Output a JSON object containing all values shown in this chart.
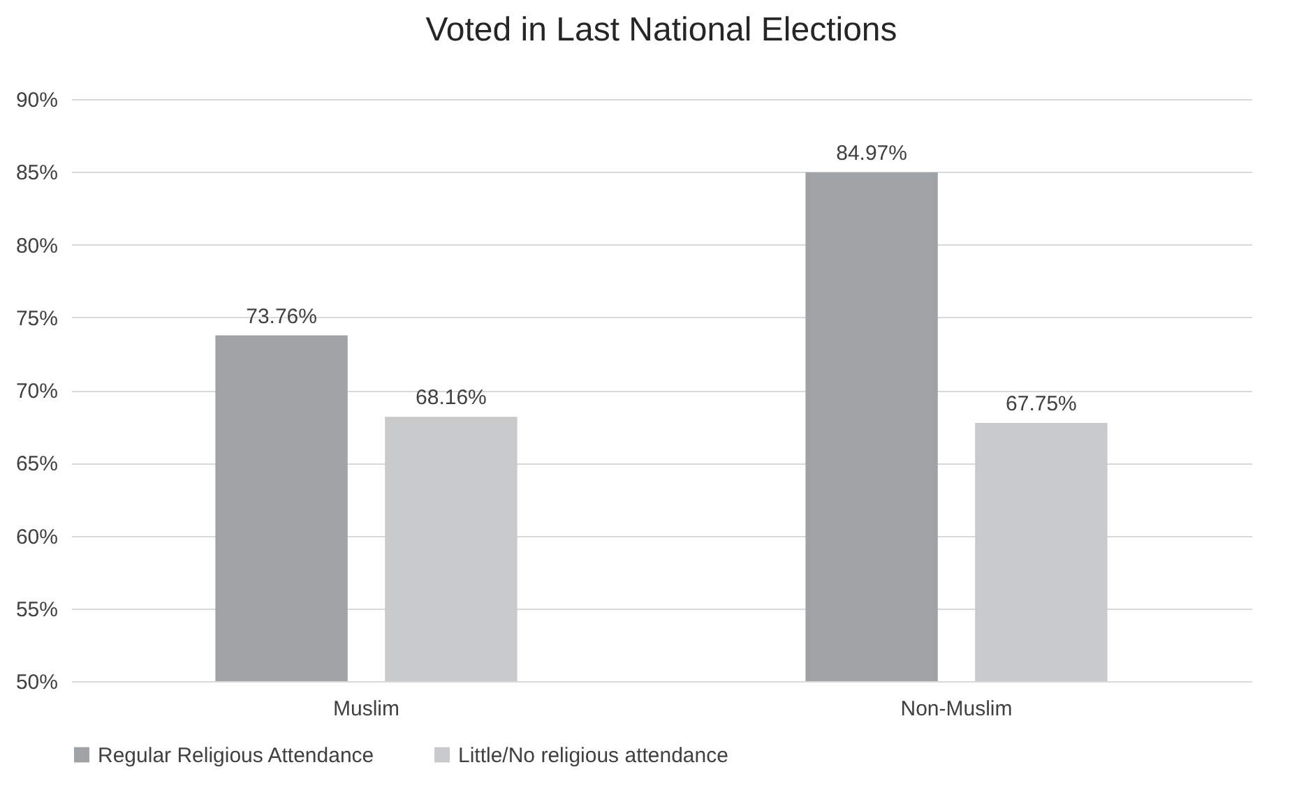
{
  "chart_data": {
    "type": "bar",
    "title": "Voted in Last National Elections",
    "categories": [
      "Muslim",
      "Non-Muslim"
    ],
    "series": [
      {
        "name": "Regular Religious Attendance",
        "color": "#a0a3a6",
        "values": [
          73.76,
          84.97
        ],
        "value_labels": [
          "73.76%",
          "84.97%"
        ]
      },
      {
        "name": "Little/No religious attendance",
        "color": "#c8c9cb",
        "values": [
          68.16,
          67.75
        ],
        "value_labels": [
          "68.16%",
          "67.75%"
        ]
      }
    ],
    "ylim": [
      50,
      90
    ],
    "yticks": [
      {
        "value": 50,
        "label": "50%"
      },
      {
        "value": 55,
        "label": "55%"
      },
      {
        "value": 60,
        "label": "60%"
      },
      {
        "value": 65,
        "label": "65%"
      },
      {
        "value": 70,
        "label": "70%"
      },
      {
        "value": 75,
        "label": "75%"
      },
      {
        "value": 80,
        "label": "80%"
      },
      {
        "value": 85,
        "label": "85%"
      },
      {
        "value": 90,
        "label": "90%"
      }
    ],
    "grid": "y",
    "legend": "bottom"
  }
}
